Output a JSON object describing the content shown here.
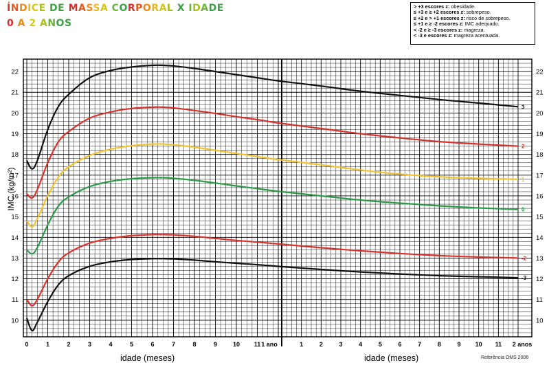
{
  "title": {
    "line1_letters": [
      "Í",
      "N",
      "D",
      "I",
      "C",
      "E",
      " ",
      "D",
      "E",
      " ",
      "M",
      "A",
      "S",
      "S",
      "A",
      " ",
      "C",
      "O",
      "R",
      "P",
      "O",
      "R",
      "A",
      "L",
      " ",
      "X",
      " ",
      "I",
      "D",
      "A",
      "D",
      "E"
    ],
    "line1_colors": [
      "#d4302b",
      "#e05a23",
      "#e88a1e",
      "#e8b91c",
      "#d8c51c",
      "#a9be22",
      "#6ab23a",
      "#3e9f44",
      "#3e9f44",
      "#3e9f44",
      "#d4302b",
      "#e05a23",
      "#e88a1e",
      "#e8b91c",
      "#d8c51c",
      "#a9be22",
      "#6ab23a",
      "#3e9f44",
      "#d4302b",
      "#e05a23",
      "#e88a1e",
      "#e8b91c",
      "#d8c51c",
      "#a9be22",
      "#6ab23a",
      "#3e9f44",
      "#3e9f44",
      "#6ab23a",
      "#a9be22",
      "#6ab23a",
      "#3e9f44",
      "#3e9f44"
    ],
    "line2_letters": [
      "0",
      " ",
      "A",
      " ",
      "2",
      " ",
      "A",
      "N",
      "O",
      "S"
    ],
    "line2_colors": [
      "#d4302b",
      "#d4302b",
      "#e88a1e",
      "#e88a1e",
      "#d8c51c",
      "#d8c51c",
      "#a9be22",
      "#6ab23a",
      "#3e9f44",
      "#3e9f44"
    ]
  },
  "legend": [
    {
      "bold": "> +3 escores z:",
      "text": " obesidade."
    },
    {
      "bold": "≤ +3 e ≥ +2 escores z:",
      "text": " sobrepeso."
    },
    {
      "bold": "≤ +2 e > +1 escores z:",
      "text": " risco de sobrepeso."
    },
    {
      "bold": "≤ +1 e ≥ -2 escores z:",
      "text": " IMC adequado."
    },
    {
      "bold": "< -2 e ≥ -3 escores z:",
      "text": " magreza."
    },
    {
      "bold": "< -3 e escores z:",
      "text": " magreza acentuada."
    }
  ],
  "axis": {
    "ylabel": "IMC (kg/m²)",
    "xlabel_left": "idade (meses)",
    "xlabel_right": "idade (meses)",
    "reference": "Referência OMS 2006",
    "x_ticks_left": [
      "0",
      "1",
      "2",
      "3",
      "4",
      "5",
      "6",
      "7",
      "8",
      "9",
      "10",
      "11",
      "1 ano"
    ],
    "x_ticks_right": [
      "1",
      "2",
      "3",
      "4",
      "5",
      "6",
      "7",
      "8",
      "9",
      "10",
      "11",
      "2 anos"
    ],
    "y_ticks": [
      "10",
      "11",
      "12",
      "13",
      "14",
      "15",
      "16",
      "17",
      "18",
      "19",
      "20",
      "21",
      "22"
    ]
  },
  "chart_data": {
    "type": "line",
    "title": "ÍNDICE DE MASSA CORPORAL X IDADE 0 A 2 ANOS",
    "xlabel": "idade (meses)",
    "ylabel": "IMC (kg/m²)",
    "xlim": [
      0,
      24
    ],
    "ylim": [
      9.2,
      22.6
    ],
    "grid": true,
    "x": [
      0,
      0.25,
      0.5,
      1,
      1.5,
      2,
      3,
      4,
      5,
      6,
      6.5,
      7,
      8,
      9,
      10,
      11,
      12,
      14,
      16,
      18,
      20,
      22,
      24
    ],
    "series": [
      {
        "name": "3",
        "color": "#111111",
        "values": [
          17.7,
          17.3,
          17.7,
          19.2,
          20.3,
          20.9,
          21.7,
          22.05,
          22.22,
          22.3,
          22.3,
          22.27,
          22.15,
          22.0,
          21.85,
          21.7,
          21.55,
          21.3,
          21.05,
          20.85,
          20.65,
          20.48,
          20.3
        ]
      },
      {
        "name": "2",
        "color": "#d9312b",
        "values": [
          16.1,
          15.9,
          16.3,
          17.6,
          18.6,
          19.1,
          19.75,
          20.05,
          20.22,
          20.28,
          20.28,
          20.25,
          20.12,
          19.98,
          19.82,
          19.68,
          19.52,
          19.25,
          19.0,
          18.8,
          18.62,
          18.5,
          18.4
        ]
      },
      {
        "name": "1",
        "color": "#f2c12e",
        "values": [
          14.8,
          14.5,
          14.9,
          16.0,
          16.9,
          17.4,
          17.95,
          18.25,
          18.42,
          18.5,
          18.5,
          18.47,
          18.35,
          18.2,
          18.05,
          17.9,
          17.75,
          17.5,
          17.25,
          17.05,
          16.92,
          16.85,
          16.8
        ]
      },
      {
        "name": "0",
        "color": "#2b9a48",
        "values": [
          13.4,
          13.2,
          13.5,
          14.6,
          15.5,
          15.95,
          16.45,
          16.7,
          16.83,
          16.88,
          16.88,
          16.85,
          16.75,
          16.62,
          16.48,
          16.35,
          16.22,
          16.0,
          15.8,
          15.65,
          15.52,
          15.42,
          15.35
        ]
      },
      {
        "name": "-2",
        "color": "#d9312b",
        "values": [
          11.0,
          10.7,
          11.0,
          12.0,
          12.8,
          13.25,
          13.72,
          13.95,
          14.08,
          14.13,
          14.13,
          14.12,
          14.05,
          13.95,
          13.85,
          13.77,
          13.68,
          13.5,
          13.35,
          13.22,
          13.12,
          13.05,
          13.0
        ]
      },
      {
        "name": "-3",
        "color": "#111111",
        "values": [
          10.1,
          9.5,
          9.9,
          10.9,
          11.7,
          12.15,
          12.6,
          12.82,
          12.93,
          12.97,
          12.97,
          12.96,
          12.9,
          12.82,
          12.75,
          12.68,
          12.6,
          12.45,
          12.33,
          12.23,
          12.15,
          12.1,
          12.05
        ]
      }
    ]
  }
}
